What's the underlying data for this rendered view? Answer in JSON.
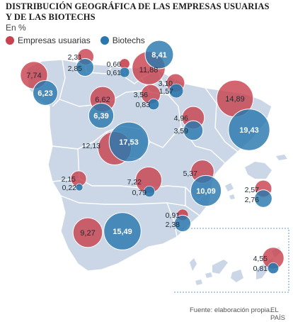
{
  "title_line1": "DISTRIBUCIÓN GEOGRÁFICA DE LAS EMPRESAS USUARIAS",
  "title_line2": "Y DE LAS BIOTECHS",
  "subtitle": "En %",
  "legend": {
    "empresas": "Empresas usuarias",
    "biotechs": "Biotechs"
  },
  "colors": {
    "empresas": "#c8434f",
    "biotechs": "#2a77ad",
    "land": "#cbd7e6",
    "border": "#ffffff"
  },
  "empresas_values": [
    {
      "id": "galicia",
      "value": "7,74"
    },
    {
      "id": "asturias",
      "value": "2,31"
    },
    {
      "id": "cantabria",
      "value": "0,66"
    },
    {
      "id": "pais-vasco",
      "value": "11,88"
    },
    {
      "id": "navarra",
      "value": "3,10"
    },
    {
      "id": "castilla-leon",
      "value": "6,62"
    },
    {
      "id": "la-rioja",
      "value": "3,56"
    },
    {
      "id": "aragon",
      "value": "4,96"
    },
    {
      "id": "cataluna",
      "value": "14,89"
    },
    {
      "id": "madrid",
      "value": "12,13"
    },
    {
      "id": "extremadura",
      "value": "2,15"
    },
    {
      "id": "castilla-la-mancha",
      "value": "7,22"
    },
    {
      "id": "comunidad-valenciana",
      "value": "5,37"
    },
    {
      "id": "baleares",
      "value": "2,57"
    },
    {
      "id": "murcia",
      "value": "0,91"
    },
    {
      "id": "andalucia",
      "value": "9,27"
    },
    {
      "id": "canarias",
      "value": "4,55"
    }
  ],
  "biotechs_values": [
    {
      "id": "galicia",
      "value": "6,23"
    },
    {
      "id": "asturias",
      "value": "2,85"
    },
    {
      "id": "cantabria",
      "value": "0,61"
    },
    {
      "id": "pais-vasco",
      "value": "8,41"
    },
    {
      "id": "navarra",
      "value": "1,57"
    },
    {
      "id": "castilla-leon",
      "value": "6,39"
    },
    {
      "id": "la-rioja",
      "value": "0,83"
    },
    {
      "id": "aragon",
      "value": "3,59"
    },
    {
      "id": "cataluna",
      "value": "19,43"
    },
    {
      "id": "madrid",
      "value": "17,53"
    },
    {
      "id": "extremadura",
      "value": "0,22"
    },
    {
      "id": "castilla-la-mancha",
      "value": "0,79"
    },
    {
      "id": "comunidad-valenciana",
      "value": "10,09"
    },
    {
      "id": "baleares",
      "value": "2,76"
    },
    {
      "id": "murcia",
      "value": "2,38"
    },
    {
      "id": "andalucia",
      "value": "15,49"
    },
    {
      "id": "canarias",
      "value": "0,81"
    }
  ],
  "footer": {
    "source": "Fuente: elaboración propia.",
    "brand": "EL PAÍS"
  }
}
